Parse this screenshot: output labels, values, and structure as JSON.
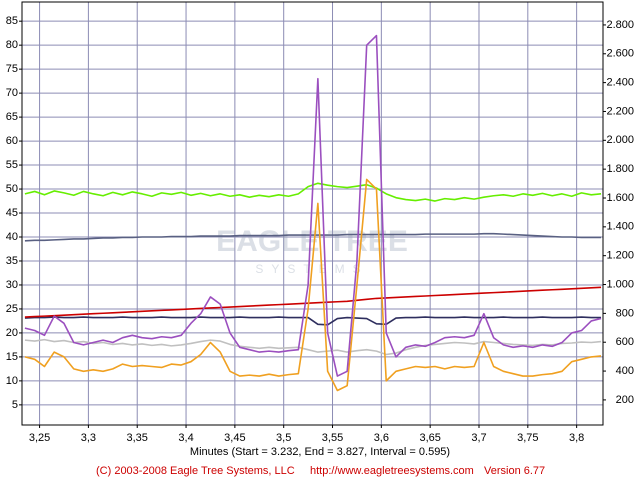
{
  "chart_data": {
    "type": "line",
    "x_label": "Minutes (Start = 3.232, End = 3.827, Interval = 0.595)",
    "watermark": [
      "EAGLE TREE",
      "SYSTEMS"
    ],
    "footer": {
      "copyright": "(C) 2003-2008 Eagle Tree Systems, LLC",
      "url": "http://www.eagletreesystems.com",
      "version": "Version 6.77"
    },
    "xlim": [
      3.232,
      3.827
    ],
    "xticks": [
      {
        "value": 3.25,
        "label": "3,25"
      },
      {
        "value": 3.3,
        "label": "3,3"
      },
      {
        "value": 3.35,
        "label": "3,35"
      },
      {
        "value": 3.4,
        "label": "3,4"
      },
      {
        "value": 3.45,
        "label": "3,45"
      },
      {
        "value": 3.5,
        "label": "3,5"
      },
      {
        "value": 3.55,
        "label": "3,55"
      },
      {
        "value": 3.6,
        "label": "3,6"
      },
      {
        "value": 3.65,
        "label": "3,65"
      },
      {
        "value": 3.7,
        "label": "3,7"
      },
      {
        "value": 3.75,
        "label": "3,75"
      },
      {
        "value": 3.8,
        "label": "3,8"
      }
    ],
    "ylim": [
      0.8,
      89
    ],
    "yticks": [
      5,
      10,
      15,
      20,
      25,
      30,
      35,
      40,
      45,
      50,
      55,
      60,
      65,
      70,
      75,
      80,
      85
    ],
    "y2lim": [
      26,
      2959
    ],
    "y2ticks": [
      200,
      400,
      600,
      800,
      {
        "value": 1000,
        "label": "1.000"
      },
      {
        "value": 1200,
        "label": "1.200"
      },
      {
        "value": 1400,
        "label": "1.400"
      },
      {
        "value": 1600,
        "label": "1.600"
      },
      {
        "value": 1800,
        "label": "1.800"
      },
      {
        "value": 2000,
        "label": "2.000"
      },
      {
        "value": 2200,
        "label": "2.200"
      },
      {
        "value": 2400,
        "label": "2.400"
      },
      {
        "value": 2600,
        "label": "2.600"
      },
      {
        "value": 2800,
        "label": "2.800"
      }
    ],
    "grid": true,
    "x": [
      3.235,
      3.245,
      3.255,
      3.265,
      3.275,
      3.285,
      3.295,
      3.305,
      3.315,
      3.325,
      3.335,
      3.345,
      3.355,
      3.365,
      3.375,
      3.385,
      3.395,
      3.405,
      3.415,
      3.425,
      3.435,
      3.445,
      3.455,
      3.465,
      3.475,
      3.485,
      3.495,
      3.505,
      3.515,
      3.525,
      3.535,
      3.545,
      3.555,
      3.565,
      3.575,
      3.585,
      3.595,
      3.605,
      3.615,
      3.625,
      3.635,
      3.645,
      3.655,
      3.665,
      3.675,
      3.685,
      3.695,
      3.705,
      3.715,
      3.725,
      3.735,
      3.745,
      3.755,
      3.765,
      3.775,
      3.785,
      3.795,
      3.805,
      3.815,
      3.825
    ],
    "series": [
      {
        "color": "#c0c0c0",
        "values": [
          18.5,
          18.3,
          18.6,
          18.2,
          18.4,
          18,
          18.2,
          17.8,
          18,
          17.6,
          17.8,
          17.5,
          17.7,
          17.4,
          17.6,
          17.3,
          17.5,
          17.8,
          18.2,
          18.5,
          18.3,
          17.6,
          17.2,
          17,
          16.8,
          17,
          16.8,
          16.9,
          17,
          16.5,
          16,
          16.2,
          16.4,
          16,
          16.3,
          16.5,
          16.2,
          15.5,
          15.8,
          16.5,
          17,
          17.4,
          17.6,
          17.8,
          18,
          17.9,
          17.7,
          18.2,
          18,
          17.8,
          17.6,
          17.5,
          17.4,
          17.6,
          17.5,
          17.8,
          17.9,
          18.1,
          18,
          18.2
        ]
      },
      {
        "color": "#596082",
        "values": [
          39.2,
          39.3,
          39.3,
          39.4,
          39.5,
          39.6,
          39.6,
          39.7,
          39.8,
          39.8,
          39.9,
          39.9,
          40,
          40,
          40,
          40.1,
          40.1,
          40.1,
          40.2,
          40.2,
          40.2,
          40.2,
          40.3,
          40.3,
          40.3,
          40.3,
          40.3,
          40.4,
          40.4,
          40.4,
          40.4,
          40.4,
          40.4,
          40.5,
          40.5,
          40.5,
          40.5,
          40.5,
          40.5,
          40.5,
          40.5,
          40.6,
          40.6,
          40.6,
          40.6,
          40.6,
          40.6,
          40.7,
          40.7,
          40.6,
          40.5,
          40.4,
          40.3,
          40.2,
          40.1,
          40,
          40,
          39.9,
          39.9,
          39.9
        ]
      },
      {
        "color": "#2e2e5e",
        "values": [
          23.1,
          23.2,
          23.2,
          23.3,
          23.2,
          23.2,
          23.3,
          23.2,
          23.2,
          23.2,
          23.3,
          23.2,
          23.2,
          23.2,
          23.3,
          23.2,
          23.2,
          23.2,
          23.3,
          23.2,
          23.2,
          23.2,
          23.3,
          23.2,
          23.2,
          23.2,
          23.3,
          23.2,
          23.2,
          23.2,
          21.8,
          21.7,
          23,
          23.2,
          23.1,
          23,
          21.9,
          21.8,
          23.1,
          23.2,
          23.2,
          23.3,
          23.2,
          23.2,
          23.2,
          23.3,
          23.2,
          23.2,
          23.2,
          23.3,
          23.2,
          23.2,
          23.2,
          23.3,
          23.2,
          23.2,
          23.2,
          23.3,
          23.2,
          23.2
        ]
      },
      {
        "color": "#cc0000",
        "values": [
          23.3,
          23.4,
          23.5,
          23.6,
          23.7,
          23.8,
          23.9,
          24,
          24.1,
          24.2,
          24.3,
          24.4,
          24.5,
          24.6,
          24.7,
          24.8,
          24.9,
          25,
          25.1,
          25.2,
          25.3,
          25.4,
          25.5,
          25.6,
          25.7,
          25.8,
          25.9,
          26,
          26.1,
          26.2,
          26.3,
          26.4,
          26.5,
          26.6,
          26.8,
          27,
          27.2,
          27.3,
          27.4,
          27.5,
          27.6,
          27.7,
          27.8,
          27.9,
          28,
          28.1,
          28.2,
          28.3,
          28.4,
          28.5,
          28.6,
          28.7,
          28.8,
          28.9,
          29,
          29.1,
          29.2,
          29.3,
          29.4,
          29.5
        ]
      },
      {
        "color": "#66ee00",
        "values": [
          49,
          49.5,
          48.8,
          49.6,
          49.2,
          48.7,
          49.5,
          49,
          48.6,
          49.3,
          48.8,
          49.4,
          49,
          48.5,
          49.2,
          48.9,
          49.3,
          48.7,
          49.1,
          48.6,
          49,
          48.5,
          48.8,
          48.3,
          48.7,
          48.4,
          48.8,
          48.5,
          49,
          50.5,
          51.2,
          50.8,
          50.5,
          50.3,
          50.6,
          50.9,
          50.2,
          49,
          48.2,
          47.8,
          47.6,
          47.9,
          47.5,
          48,
          47.8,
          48.2,
          47.9,
          48.3,
          48.6,
          48.8,
          48.5,
          49,
          48.7,
          49.1,
          48.6,
          49,
          48.5,
          49.2,
          48.8,
          49
        ]
      },
      {
        "color": "#f0a020",
        "values": [
          15,
          14.5,
          13,
          16,
          15,
          12.5,
          12,
          12.3,
          12,
          12.5,
          13.5,
          13,
          13.2,
          13,
          12.8,
          13.5,
          13.3,
          14,
          15.5,
          18,
          16,
          12,
          11,
          11.2,
          11,
          11.4,
          11,
          11.3,
          11.5,
          25,
          47,
          12,
          8,
          9,
          30,
          52,
          50,
          10,
          12,
          12.5,
          13,
          12.8,
          13,
          12.5,
          13,
          12.8,
          13,
          18,
          13,
          12,
          11.5,
          11,
          11,
          11.3,
          11.5,
          12,
          14,
          14.5,
          15,
          15.2
        ]
      },
      {
        "color": "#9b4fbf",
        "values": [
          21,
          20.5,
          19.5,
          23.5,
          22,
          18,
          17.5,
          18,
          18.5,
          18,
          19,
          19.5,
          19,
          18.8,
          19.2,
          19,
          19.5,
          22,
          24,
          27.5,
          26,
          20,
          17,
          16.5,
          16,
          16.2,
          16,
          16.3,
          16.5,
          30,
          73,
          20,
          11,
          12,
          35,
          80,
          82,
          20,
          15,
          17,
          17.5,
          17.2,
          18,
          19,
          19.2,
          19,
          19.5,
          24,
          19,
          17.5,
          17,
          17.3,
          17,
          17.5,
          17.2,
          18,
          20,
          20.5,
          22.5,
          23
        ]
      }
    ]
  }
}
